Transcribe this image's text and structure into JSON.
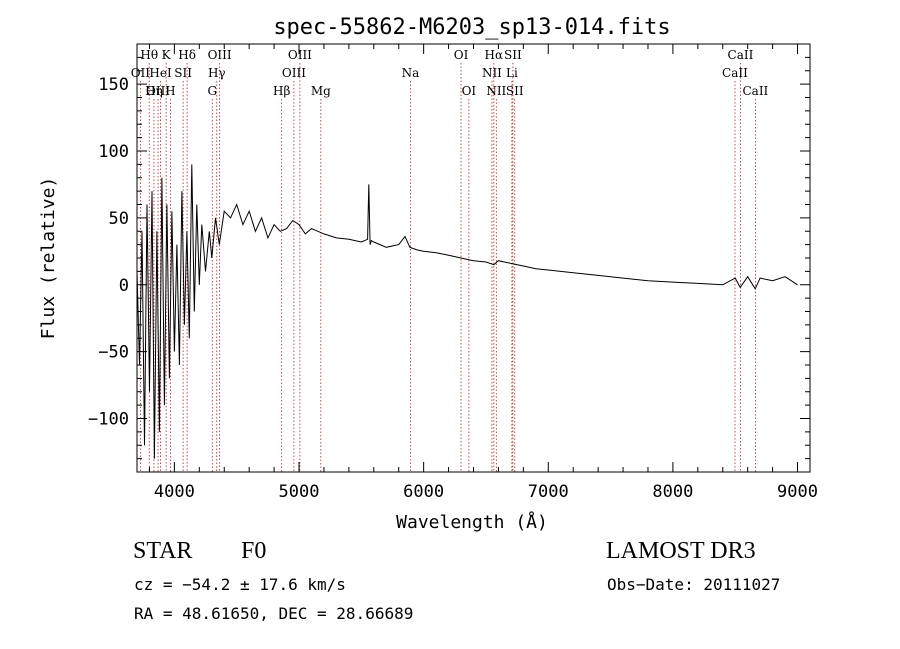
{
  "chart_data": {
    "type": "line",
    "title": "spec-55862-M6203_sp13-014.fits",
    "xlabel": "Wavelength (Å)",
    "ylabel": "Flux (relative)",
    "xlim": [
      3700,
      9100
    ],
    "ylim": [
      -140,
      180
    ],
    "xticks": [
      4000,
      5000,
      6000,
      7000,
      8000,
      9000
    ],
    "yticks": [
      -100,
      -50,
      0,
      50,
      100,
      150
    ],
    "series": [
      {
        "name": "flux",
        "x": [
          3700,
          3720,
          3740,
          3760,
          3780,
          3800,
          3820,
          3840,
          3860,
          3880,
          3900,
          3920,
          3940,
          3960,
          3980,
          4000,
          4020,
          4040,
          4060,
          4080,
          4100,
          4120,
          4140,
          4160,
          4180,
          4200,
          4220,
          4250,
          4280,
          4300,
          4330,
          4360,
          4400,
          4450,
          4500,
          4550,
          4600,
          4650,
          4700,
          4750,
          4800,
          4850,
          4900,
          4950,
          5000,
          5050,
          5100,
          5200,
          5300,
          5400,
          5500,
          5550,
          5560,
          5570,
          5580,
          5600,
          5700,
          5800,
          5850,
          5890,
          5950,
          6000,
          6100,
          6200,
          6300,
          6400,
          6500,
          6563,
          6600,
          6700,
          6800,
          6900,
          7000,
          7200,
          7400,
          7600,
          7800,
          8000,
          8200,
          8400,
          8500,
          8540,
          8600,
          8660,
          8700,
          8800,
          8900,
          9000
        ],
        "y": [
          10,
          -60,
          40,
          -120,
          60,
          -80,
          70,
          -130,
          40,
          -110,
          80,
          -90,
          60,
          -70,
          55,
          -50,
          30,
          -60,
          70,
          -30,
          40,
          -40,
          90,
          -20,
          60,
          0,
          45,
          10,
          40,
          20,
          50,
          30,
          55,
          50,
          60,
          45,
          55,
          40,
          50,
          35,
          45,
          40,
          42,
          48,
          45,
          38,
          42,
          38,
          35,
          34,
          32,
          34,
          75,
          30,
          33,
          32,
          28,
          30,
          36,
          28,
          26,
          25,
          24,
          22,
          20,
          18,
          17,
          15,
          18,
          16,
          14,
          12,
          11,
          9,
          7,
          5,
          3,
          2,
          1,
          0,
          5,
          -2,
          6,
          -3,
          5,
          3,
          6,
          0
        ]
      }
    ],
    "line_markers": [
      {
        "label": "Hθ",
        "wave": 3798,
        "row": 0
      },
      {
        "label": "OII",
        "wave": 3727,
        "row": 1
      },
      {
        "label": "OIII",
        "wave": 3869,
        "row": 2
      },
      {
        "label": "HeI",
        "wave": 3889,
        "row": 1
      },
      {
        "label": "Hη",
        "wave": 3836,
        "row": 2
      },
      {
        "label": "K",
        "wave": 3934,
        "row": 0
      },
      {
        "label": "H",
        "wave": 3968,
        "row": 2
      },
      {
        "label": "SII",
        "wave": 4070,
        "row": 1
      },
      {
        "label": "Hδ",
        "wave": 4102,
        "row": 0
      },
      {
        "label": "OIII",
        "wave": 4363,
        "row": 0
      },
      {
        "label": "Hγ",
        "wave": 4340,
        "row": 1
      },
      {
        "label": "G",
        "wave": 4304,
        "row": 2
      },
      {
        "label": "Hβ",
        "wave": 4861,
        "row": 2
      },
      {
        "label": "OIII",
        "wave": 5007,
        "row": 0
      },
      {
        "label": "OIII",
        "wave": 4959,
        "row": 1
      },
      {
        "label": "Mg",
        "wave": 5175,
        "row": 2
      },
      {
        "label": "Na",
        "wave": 5894,
        "row": 1
      },
      {
        "label": "OI",
        "wave": 6300,
        "row": 0
      },
      {
        "label": "OI",
        "wave": 6363,
        "row": 2
      },
      {
        "label": "Hα",
        "wave": 6563,
        "row": 0
      },
      {
        "label": "NII",
        "wave": 6548,
        "row": 1
      },
      {
        "label": "NII",
        "wave": 6583,
        "row": 2
      },
      {
        "label": "SII",
        "wave": 6716,
        "row": 0
      },
      {
        "label": "Li",
        "wave": 6708,
        "row": 1
      },
      {
        "label": "SII",
        "wave": 6731,
        "row": 2
      },
      {
        "label": "CaII",
        "wave": 8542,
        "row": 0
      },
      {
        "label": "CaII",
        "wave": 8498,
        "row": 1
      },
      {
        "label": "CaII",
        "wave": 8662,
        "row": 2
      }
    ]
  },
  "footer": {
    "object_class": "STAR",
    "subclass": "F0",
    "redshift": "cz = −54.2 ± 17.6 km/s",
    "coords": "RA =  48.61650, DEC =  28.66689",
    "survey": "LAMOST DR3",
    "obs_date": "Obs−Date: 20111027"
  },
  "colors": {
    "line": "#000000",
    "marker": "#b22222"
  }
}
